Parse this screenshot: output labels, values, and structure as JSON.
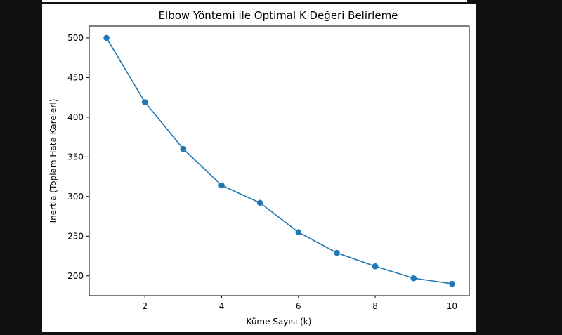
{
  "chart_data": {
    "type": "line",
    "title": "Elbow Yöntemi ile Optimal K Değeri Belirleme",
    "xlabel": "Küme Sayısı (k)",
    "ylabel": "Inertia (Toplam Hata Kareleri)",
    "x": [
      1,
      2,
      3,
      4,
      5,
      6,
      7,
      8,
      9,
      10
    ],
    "series": [
      {
        "values": [
          500,
          419,
          360,
          314,
          292,
          255,
          229,
          212,
          197,
          190
        ]
      }
    ],
    "xlim": [
      0.55,
      10.45
    ],
    "ylim": [
      175,
      515
    ],
    "xticks": [
      2,
      4,
      6,
      8,
      10
    ],
    "yticks": [
      200,
      250,
      300,
      350,
      400,
      450,
      500
    ],
    "marker": "circle",
    "grid": false,
    "color": "#1f77b4"
  }
}
